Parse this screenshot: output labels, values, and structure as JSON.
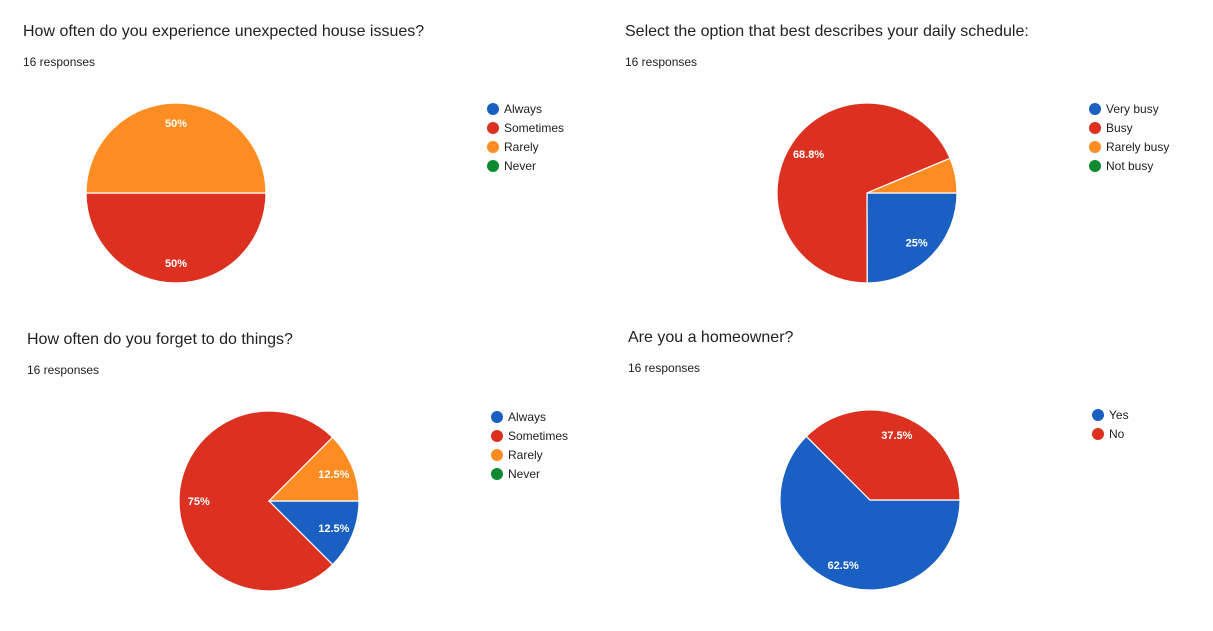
{
  "cards": [
    {
      "title": "How often do you experience unexpected house issues?",
      "subtitle": "16 responses"
    },
    {
      "title": "Select the option that best describes your daily schedule:",
      "subtitle": "16 responses"
    },
    {
      "title": "How often do you forget to do things?",
      "subtitle": "16 responses"
    },
    {
      "title": "Are you a homeowner?",
      "subtitle": "16 responses"
    }
  ],
  "colors": {
    "blue": "#1a5fc2",
    "red": "#dc3120",
    "orange": "#fd8d22",
    "green": "#0b8a2f"
  },
  "chart_data": [
    {
      "type": "pie",
      "title": "How often do you experience unexpected house issues?",
      "categories": [
        "Always",
        "Sometimes",
        "Rarely",
        "Never"
      ],
      "values": [
        0,
        50,
        50,
        0
      ],
      "labels": [
        "",
        "50%",
        "50%",
        ""
      ],
      "colors": [
        "#1a5fc2",
        "#dc3120",
        "#fd8d22",
        "#0b8a2f"
      ],
      "legend": "right"
    },
    {
      "type": "pie",
      "title": "Select the option that best describes your daily schedule:",
      "categories": [
        "Very busy",
        "Busy",
        "Rarely busy",
        "Not busy"
      ],
      "values": [
        25,
        68.8,
        6.3,
        0
      ],
      "labels": [
        "25%",
        "68.8%",
        "",
        ""
      ],
      "colors": [
        "#1a5fc2",
        "#dc3120",
        "#fd8d22",
        "#0b8a2f"
      ],
      "legend": "right"
    },
    {
      "type": "pie",
      "title": "How often do you forget to do things?",
      "categories": [
        "Always",
        "Sometimes",
        "Rarely",
        "Never"
      ],
      "values": [
        12.5,
        75,
        12.5,
        0
      ],
      "labels": [
        "12.5%",
        "75%",
        "12.5%",
        ""
      ],
      "colors": [
        "#1a5fc2",
        "#dc3120",
        "#fd8d22",
        "#0b8a2f"
      ],
      "legend": "right"
    },
    {
      "type": "pie",
      "title": "Are you a homeowner?",
      "categories": [
        "Yes",
        "No"
      ],
      "values": [
        62.5,
        37.5
      ],
      "labels": [
        "62.5%",
        "37.5%"
      ],
      "colors": [
        "#1a5fc2",
        "#dc3120"
      ],
      "legend": "right"
    }
  ]
}
